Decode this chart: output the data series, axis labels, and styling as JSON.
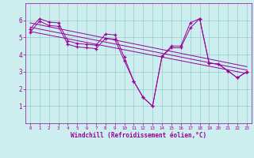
{
  "background_color": "#cceeee",
  "line_color": "#990099",
  "grid_color": "#99cccc",
  "xlabel": "Windchill (Refroidissement éolien,°C)",
  "xlabel_color": "#990099",
  "tick_color": "#990099",
  "xlim": [
    -0.5,
    23.5
  ],
  "ylim": [
    0,
    7
  ],
  "xticks": [
    0,
    1,
    2,
    3,
    4,
    5,
    6,
    7,
    8,
    9,
    10,
    11,
    12,
    13,
    14,
    15,
    16,
    17,
    18,
    19,
    20,
    21,
    22,
    23
  ],
  "yticks": [
    1,
    2,
    3,
    4,
    5,
    6
  ],
  "series1_x": [
    0,
    1,
    2,
    3,
    4,
    5,
    6,
    7,
    8,
    9,
    10,
    11,
    12,
    13,
    14,
    15,
    16,
    17,
    18,
    19,
    20,
    21,
    22,
    23
  ],
  "series1_y": [
    5.5,
    6.1,
    5.9,
    5.85,
    4.8,
    4.65,
    4.6,
    4.55,
    5.2,
    5.15,
    3.85,
    2.45,
    1.5,
    1.0,
    3.9,
    4.5,
    4.5,
    5.85,
    6.1,
    3.5,
    3.45,
    3.05,
    2.65,
    3.0
  ],
  "series2_x": [
    0,
    1,
    2,
    3,
    4,
    5,
    6,
    7,
    8,
    9,
    10,
    11,
    12,
    13,
    14,
    15,
    16,
    17,
    18,
    19,
    20,
    21,
    22,
    23
  ],
  "series2_y": [
    5.3,
    5.95,
    5.7,
    5.65,
    4.6,
    4.45,
    4.4,
    4.35,
    4.95,
    4.9,
    3.65,
    2.45,
    1.5,
    1.0,
    3.9,
    4.4,
    4.4,
    5.55,
    6.1,
    3.5,
    3.45,
    3.05,
    2.65,
    3.0
  ],
  "line1_x": [
    0,
    23
  ],
  "line1_y": [
    5.85,
    3.3
  ],
  "line2_x": [
    0,
    23
  ],
  "line2_y": [
    5.6,
    3.1
  ],
  "line3_x": [
    0,
    23
  ],
  "line3_y": [
    5.35,
    2.9
  ]
}
